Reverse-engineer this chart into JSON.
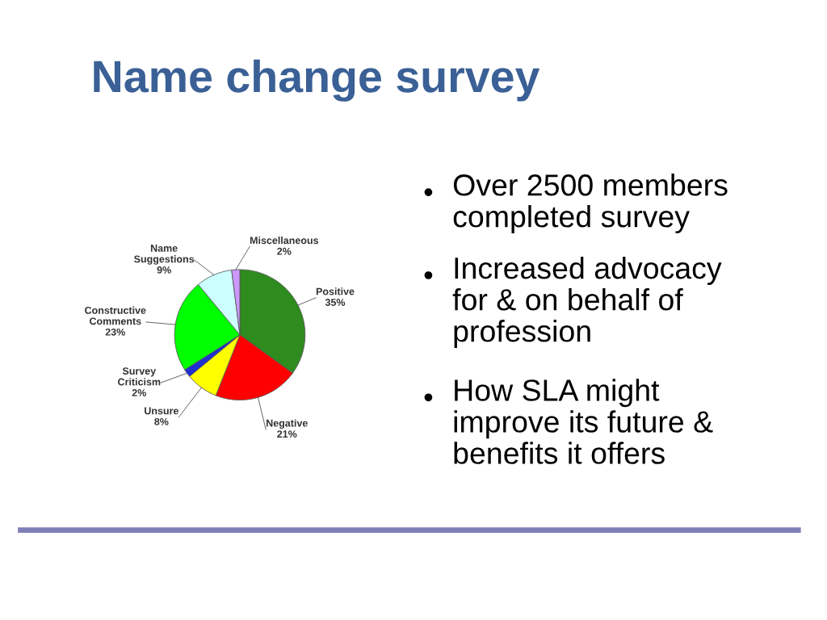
{
  "chart_data": {
    "type": "pie",
    "title": "Name change survey",
    "categories": [
      "Positive",
      "Negative",
      "Unsure",
      "Survey Criticism",
      "Constructive Comments",
      "Name Suggestions",
      "Miscellaneous"
    ],
    "values": [
      35,
      21,
      8,
      2,
      23,
      9,
      2
    ],
    "value_labels": [
      "35%",
      "21%",
      "8%",
      "2%",
      "23%",
      "9%",
      "2%"
    ],
    "colors": [
      "#2e8b1e",
      "#ff0000",
      "#ffff00",
      "#1f2fd0",
      "#00ff00",
      "#ccffff",
      "#cc99ff"
    ],
    "annotations": [
      "Over 2500 members completed survey",
      "Increased advocacy for & on behalf of profession",
      "How SLA might improve its future & benefits it offers"
    ]
  }
}
